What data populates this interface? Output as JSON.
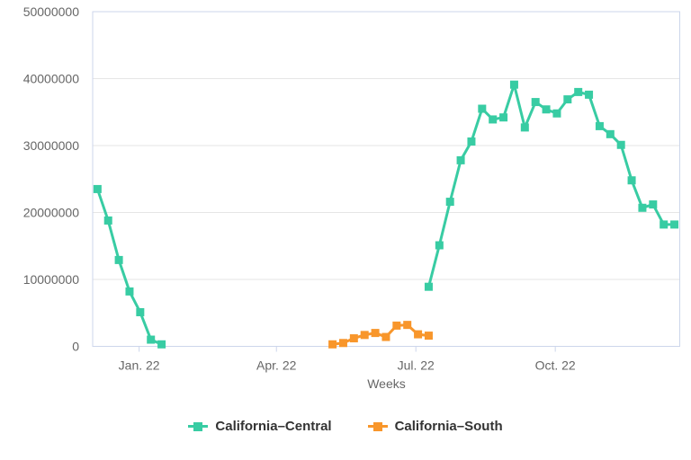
{
  "chart_data": {
    "type": "line",
    "title": "",
    "xlabel": "Weeks",
    "ylabel": "",
    "ylim": [
      0,
      50000000
    ],
    "y_ticks": [
      {
        "value": 0,
        "label": "0"
      },
      {
        "value": 10000000,
        "label": "10000000"
      },
      {
        "value": 20000000,
        "label": "20000000"
      },
      {
        "value": 30000000,
        "label": "30000000"
      },
      {
        "value": 40000000,
        "label": "40000000"
      },
      {
        "value": 50000000,
        "label": "50000000"
      }
    ],
    "x_unit": "week index (weekly data points)",
    "x_range_weeks": [
      -0.45,
      54.5
    ],
    "x_ticks": [
      {
        "week": 3.9,
        "label": "Jan. 22"
      },
      {
        "week": 16.75,
        "label": "Apr. 22"
      },
      {
        "week": 29.8,
        "label": "Jul. 22"
      },
      {
        "week": 42.85,
        "label": "Oct. 22"
      }
    ],
    "grid": "horizontal",
    "legend_position": "bottom-center",
    "axis_color": "#ccd6eb",
    "grid_color": "#e6e6e6",
    "tick_label_color": "#666666",
    "axis_title_color": "#666666",
    "legend_text_color": "#333333",
    "series": [
      {
        "name": "California–Central",
        "color": "#38cca3",
        "marker": "square",
        "segments": [
          [
            {
              "week": 0,
              "value": 23500000
            },
            {
              "week": 1,
              "value": 18800000
            },
            {
              "week": 2,
              "value": 12900000
            },
            {
              "week": 3,
              "value": 8200000
            },
            {
              "week": 4,
              "value": 5100000
            },
            {
              "week": 5,
              "value": 1000000
            },
            {
              "week": 6,
              "value": 300000
            }
          ],
          [
            {
              "week": 31,
              "value": 8900000
            },
            {
              "week": 32,
              "value": 15100000
            },
            {
              "week": 33,
              "value": 21600000
            },
            {
              "week": 34,
              "value": 27800000
            },
            {
              "week": 35,
              "value": 30600000
            },
            {
              "week": 36,
              "value": 35500000
            },
            {
              "week": 37,
              "value": 33900000
            },
            {
              "week": 38,
              "value": 34200000
            },
            {
              "week": 39,
              "value": 39100000
            },
            {
              "week": 40,
              "value": 32700000
            },
            {
              "week": 41,
              "value": 36500000
            },
            {
              "week": 42,
              "value": 35400000
            },
            {
              "week": 43,
              "value": 34800000
            },
            {
              "week": 44,
              "value": 36900000
            },
            {
              "week": 45,
              "value": 38000000
            },
            {
              "week": 46,
              "value": 37600000
            },
            {
              "week": 47,
              "value": 32900000
            },
            {
              "week": 48,
              "value": 31700000
            },
            {
              "week": 49,
              "value": 30100000
            },
            {
              "week": 50,
              "value": 24800000
            },
            {
              "week": 51,
              "value": 20700000
            },
            {
              "week": 52,
              "value": 21200000
            },
            {
              "week": 53,
              "value": 18200000
            },
            {
              "week": 54,
              "value": 18200000
            }
          ]
        ]
      },
      {
        "name": "California–South",
        "color": "#f8962b",
        "marker": "square",
        "segments": [
          [
            {
              "week": 22,
              "value": 300000
            },
            {
              "week": 23,
              "value": 500000
            },
            {
              "week": 24,
              "value": 1200000
            },
            {
              "week": 25,
              "value": 1700000
            },
            {
              "week": 26,
              "value": 2000000
            },
            {
              "week": 27,
              "value": 1400000
            },
            {
              "week": 28,
              "value": 3100000
            },
            {
              "week": 29,
              "value": 3200000
            },
            {
              "week": 30,
              "value": 1800000
            },
            {
              "week": 31,
              "value": 1600000
            }
          ]
        ]
      }
    ]
  }
}
